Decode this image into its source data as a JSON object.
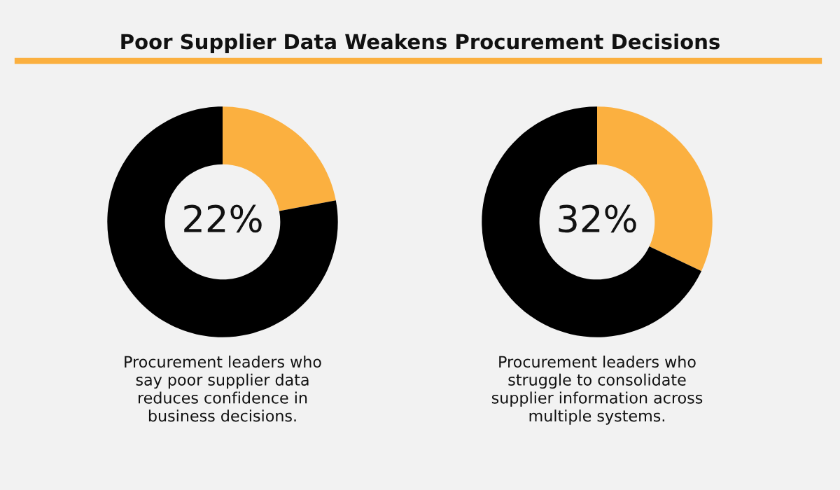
{
  "chart_data": [
    {
      "type": "donut",
      "title": "Poor Supplier Data Weakens Procurement Decisions",
      "categories": [
        null,
        null
      ],
      "values": [
        22,
        78
      ],
      "colors": [
        "#fbb040",
        "#000000"
      ],
      "value_labels": [
        "22%",
        null
      ],
      "annotations": [
        "Procurement leaders who\nsay poor supplier data\nreduces confidence in\nbusiness decisions."
      ]
    },
    {
      "type": "donut",
      "categories": [
        null,
        null
      ],
      "values": [
        32,
        68
      ],
      "colors": [
        "#fbb040",
        "#000000"
      ],
      "value_labels": [
        "32%",
        null
      ],
      "annotations": [
        "Procurement leaders who\nstruggle to consolidate\nsupplier information across\nmultiple systems."
      ]
    }
  ]
}
